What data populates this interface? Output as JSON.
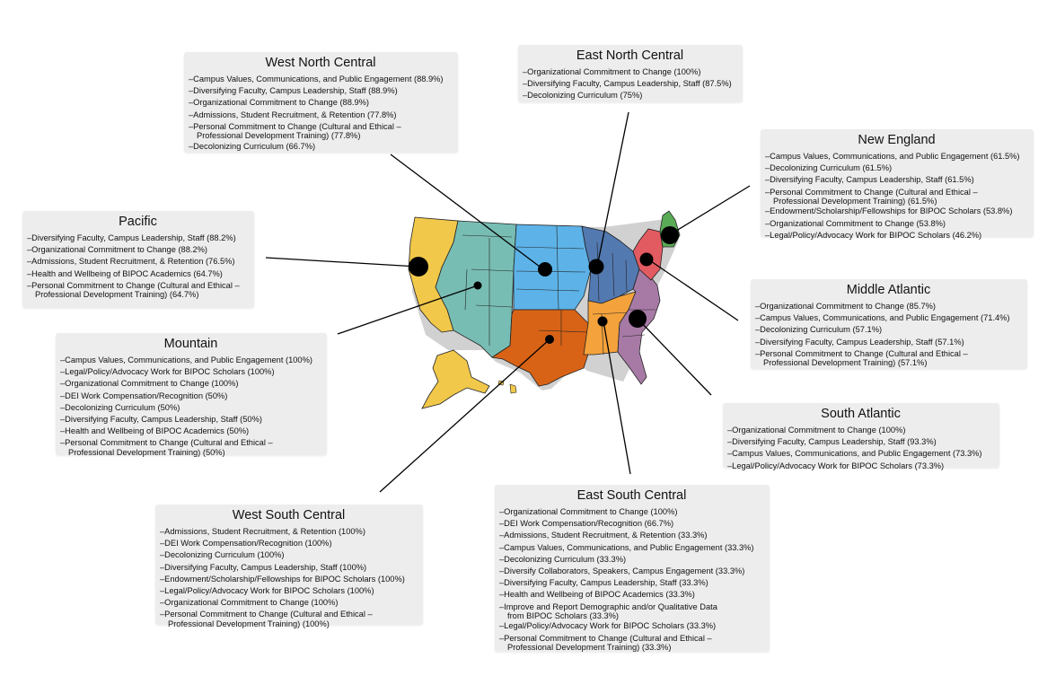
{
  "colors": {
    "pacific": "#f1c84a",
    "mountain": "#78bdb3",
    "west_north_central": "#5db3e8",
    "east_north_central": "#5279b0",
    "west_south_central": "#d86316",
    "east_south_central": "#f4a23b",
    "south_atlantic": "#a77aa6",
    "middle_atlantic": "#e25b61",
    "new_england": "#5aab55",
    "leader": "#000000",
    "box": "#ededed"
  },
  "regions": [
    {
      "key": "west_north_central",
      "title": "West North Central",
      "items": [
        {
          "text": "–Campus Values, Communications, and Public Engagement (88.9%)"
        },
        {
          "text": "–Diversifying Faculty, Campus Leadership, Staff (88.9%)"
        },
        {
          "text": "–Organizational Commitment to Change (88.9%)"
        },
        {
          "text": "–Admissions, Student Recruitment, & Retention (77.8%)"
        },
        {
          "text": "–Personal Commitment to Change (Cultural and Ethical –",
          "cont": "Professional Development Training) (77.8%)"
        },
        {
          "text": "–Decolonizing Curriculum (66.7%)"
        }
      ]
    },
    {
      "key": "east_north_central",
      "title": "East North Central",
      "items": [
        {
          "text": "–Organizational Commitment to Change (100%)"
        },
        {
          "text": "–Diversifying Faculty, Campus Leadership, Staff (87.5%)"
        },
        {
          "text": "–Decolonizing Curriculum (75%)"
        }
      ]
    },
    {
      "key": "new_england",
      "title": "New England",
      "items": [
        {
          "text": "–Campus Values, Communications, and Public Engagement (61.5%)"
        },
        {
          "text": "–Decolonizing Curriculum (61.5%)"
        },
        {
          "text": "–Diversifying Faculty, Campus Leadership, Staff (61.5%)"
        },
        {
          "text": "–Personal Commitment to Change (Cultural and Ethical –",
          "cont": "Professional Development Training) (61.5%)"
        },
        {
          "text": "–Endowment/Scholarship/Fellowships for BIPOC Scholars (53.8%)"
        },
        {
          "text": "–Organizational Commitment to Change (53.8%)"
        },
        {
          "text": "–Legal/Policy/Advocacy Work for BIPOC Scholars (46.2%)"
        }
      ]
    },
    {
      "key": "pacific",
      "title": "Pacific",
      "items": [
        {
          "text": "–Diversifying Faculty, Campus Leadership, Staff (88.2%)"
        },
        {
          "text": "–Organizational Commitment to Change (88.2%)"
        },
        {
          "text": "–Admissions, Student Recruitment, & Retention (76.5%)"
        },
        {
          "text": "–Health and Wellbeing of BIPOC Academics (64.7%)"
        },
        {
          "text": "–Personal Commitment to Change (Cultural and Ethical –",
          "cont": "Professional Development Training) (64.7%)"
        }
      ]
    },
    {
      "key": "middle_atlantic",
      "title": "Middle Atlantic",
      "items": [
        {
          "text": "–Organizational Commitment to Change (85.7%)"
        },
        {
          "text": "–Campus Values, Communications, and Public Engagement (71.4%)"
        },
        {
          "text": "–Decolonizing Curriculum (57.1%)"
        },
        {
          "text": "–Diversifying Faculty, Campus Leadership, Staff (57.1%)"
        },
        {
          "text": "–Personal Commitment to Change (Cultural and Ethical –",
          "cont": "Professional Development Training) (57.1%)"
        }
      ]
    },
    {
      "key": "mountain",
      "title": "Mountain",
      "items": [
        {
          "text": "–Campus Values, Communications, and Public Engagement (100%)"
        },
        {
          "text": "–Legal/Policy/Advocacy Work for BIPOC Scholars (100%)"
        },
        {
          "text": "–Organizational Commitment to Change (100%)"
        },
        {
          "text": "–DEI Work Compensation/Recognition (50%)"
        },
        {
          "text": "–Decolonizing Curriculum (50%)"
        },
        {
          "text": "–Diversifying Faculty, Campus Leadership, Staff (50%)"
        },
        {
          "text": "–Health and Wellbeing of BIPOC Academics (50%)"
        },
        {
          "text": "–Personal Commitment to Change (Cultural and Ethical –",
          "cont": "Professional Development Training) (50%)"
        }
      ]
    },
    {
      "key": "south_atlantic",
      "title": "South Atlantic",
      "items": [
        {
          "text": "–Organizational Commitment to Change (100%)"
        },
        {
          "text": "–Diversifying Faculty, Campus Leadership, Staff (93.3%)"
        },
        {
          "text": "–Campus Values, Communications, and Public Engagement (73.3%)"
        },
        {
          "text": "–Legal/Policy/Advocacy Work for BIPOC Scholars (73.3%)"
        }
      ]
    },
    {
      "key": "west_south_central",
      "title": "West South Central",
      "items": [
        {
          "text": "–Admissions, Student Recruitment, & Retention (100%)"
        },
        {
          "text": "–DEI Work Compensation/Recognition (100%)"
        },
        {
          "text": "–Decolonizing Curriculum (100%)"
        },
        {
          "text": "–Diversifying Faculty, Campus Leadership, Staff (100%)"
        },
        {
          "text": "–Endowment/Scholarship/Fellowships for BIPOC Scholars (100%)"
        },
        {
          "text": "–Legal/Policy/Advocacy Work for BIPOC Scholars (100%)"
        },
        {
          "text": "–Organizational Commitment to Change (100%)"
        },
        {
          "text": "–Personal Commitment to Change (Cultural and Ethical –",
          "cont": "Professional Development Training) (100%)"
        }
      ]
    },
    {
      "key": "east_south_central",
      "title": "East South Central",
      "items": [
        {
          "text": "–Organizational Commitment to Change (100%)"
        },
        {
          "text": "–DEI Work Compensation/Recognition (66.7%)"
        },
        {
          "text": "–Admissions, Student Recruitment, & Retention (33.3%)"
        },
        {
          "text": "–Campus Values, Communications, and Public Engagement (33.3%)"
        },
        {
          "text": "–Decolonizing Curriculum (33.3%)"
        },
        {
          "text": "–Diversify Collaborators, Speakers, Campus Engagement (33.3%)"
        },
        {
          "text": "–Diversifying Faculty, Campus Leadership, Staff (33.3%)"
        },
        {
          "text": "–Health and Wellbeing of BIPOC Academics (33.3%)"
        },
        {
          "text": "–Improve and Report Demographic and/or Qualitative Data",
          "cont": "from BIPOC Scholars (33.3%)"
        },
        {
          "text": "–Legal/Policy/Advocacy Work for BIPOC Scholars (33.3%)"
        },
        {
          "text": "–Personal Commitment to Change (Cultural and Ethical –",
          "cont": "Professional Development Training) (33.3%)"
        }
      ]
    }
  ]
}
